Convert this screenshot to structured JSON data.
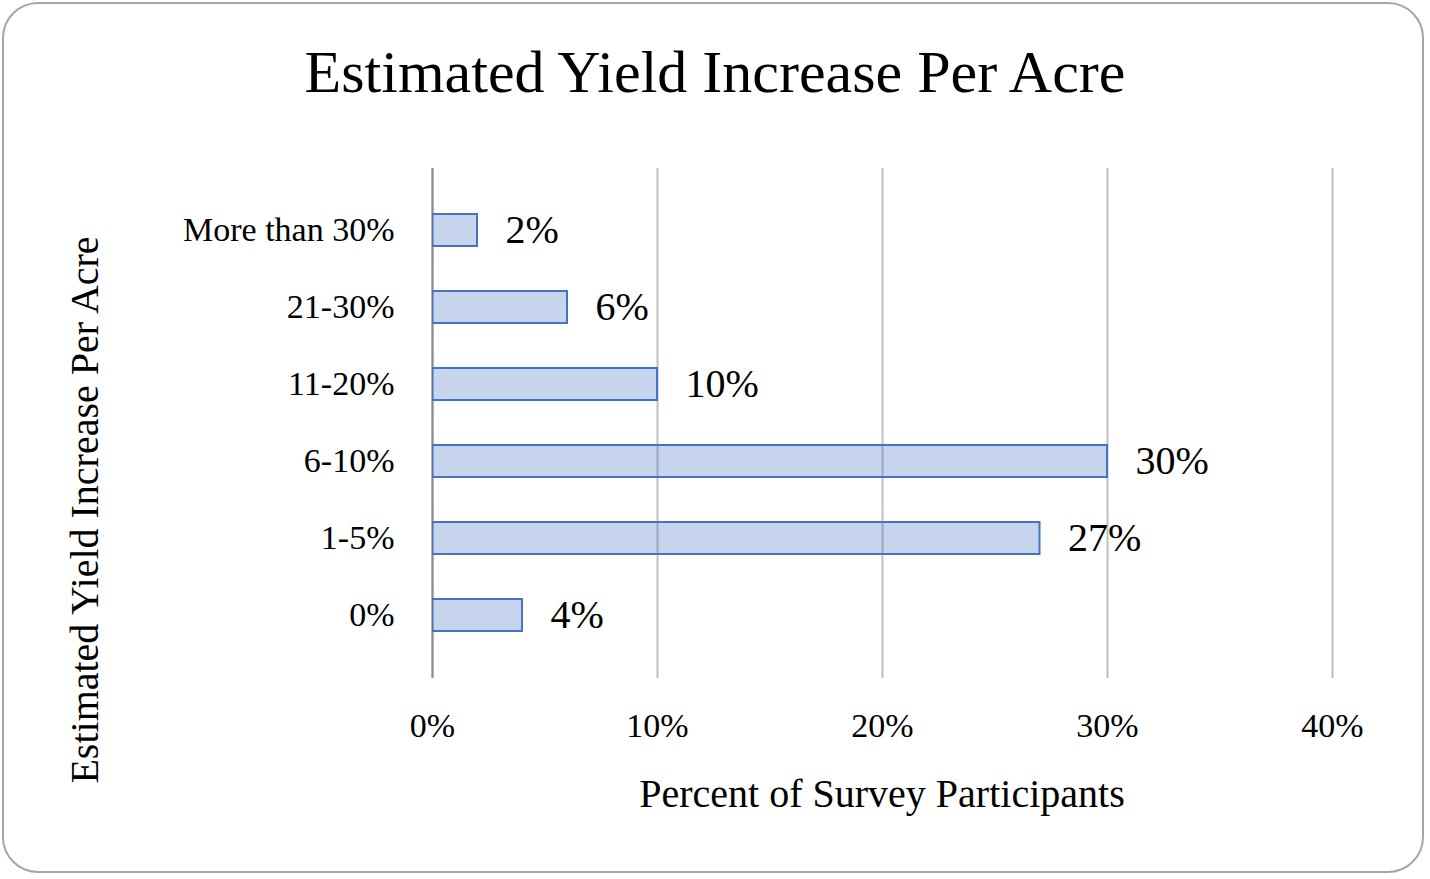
{
  "chart_data": {
    "type": "bar",
    "title": "Estimated Yield Increase Per Acre",
    "orientation": "horizontal",
    "x_label": "Percent of Survey Participants",
    "y_label": "Estimated Yield Increase Per Acre",
    "categories": [
      "More than 30%",
      "21-30%",
      "11-20%",
      "6-10%",
      "1-5%",
      "0%"
    ],
    "values": [
      2,
      6,
      10,
      30,
      27,
      4
    ],
    "value_labels": [
      "2%",
      "6%",
      "10%",
      "30%",
      "27%",
      "4%"
    ],
    "data_labels": true,
    "color": "#4472c4",
    "xlim": [
      0,
      40
    ],
    "xticks": [
      {
        "value": 0,
        "label": "0%"
      },
      {
        "value": 10,
        "label": "10%"
      },
      {
        "value": 20,
        "label": "20%"
      },
      {
        "value": 30,
        "label": "30%"
      },
      {
        "value": 40,
        "label": "40%"
      }
    ],
    "grid": true
  }
}
